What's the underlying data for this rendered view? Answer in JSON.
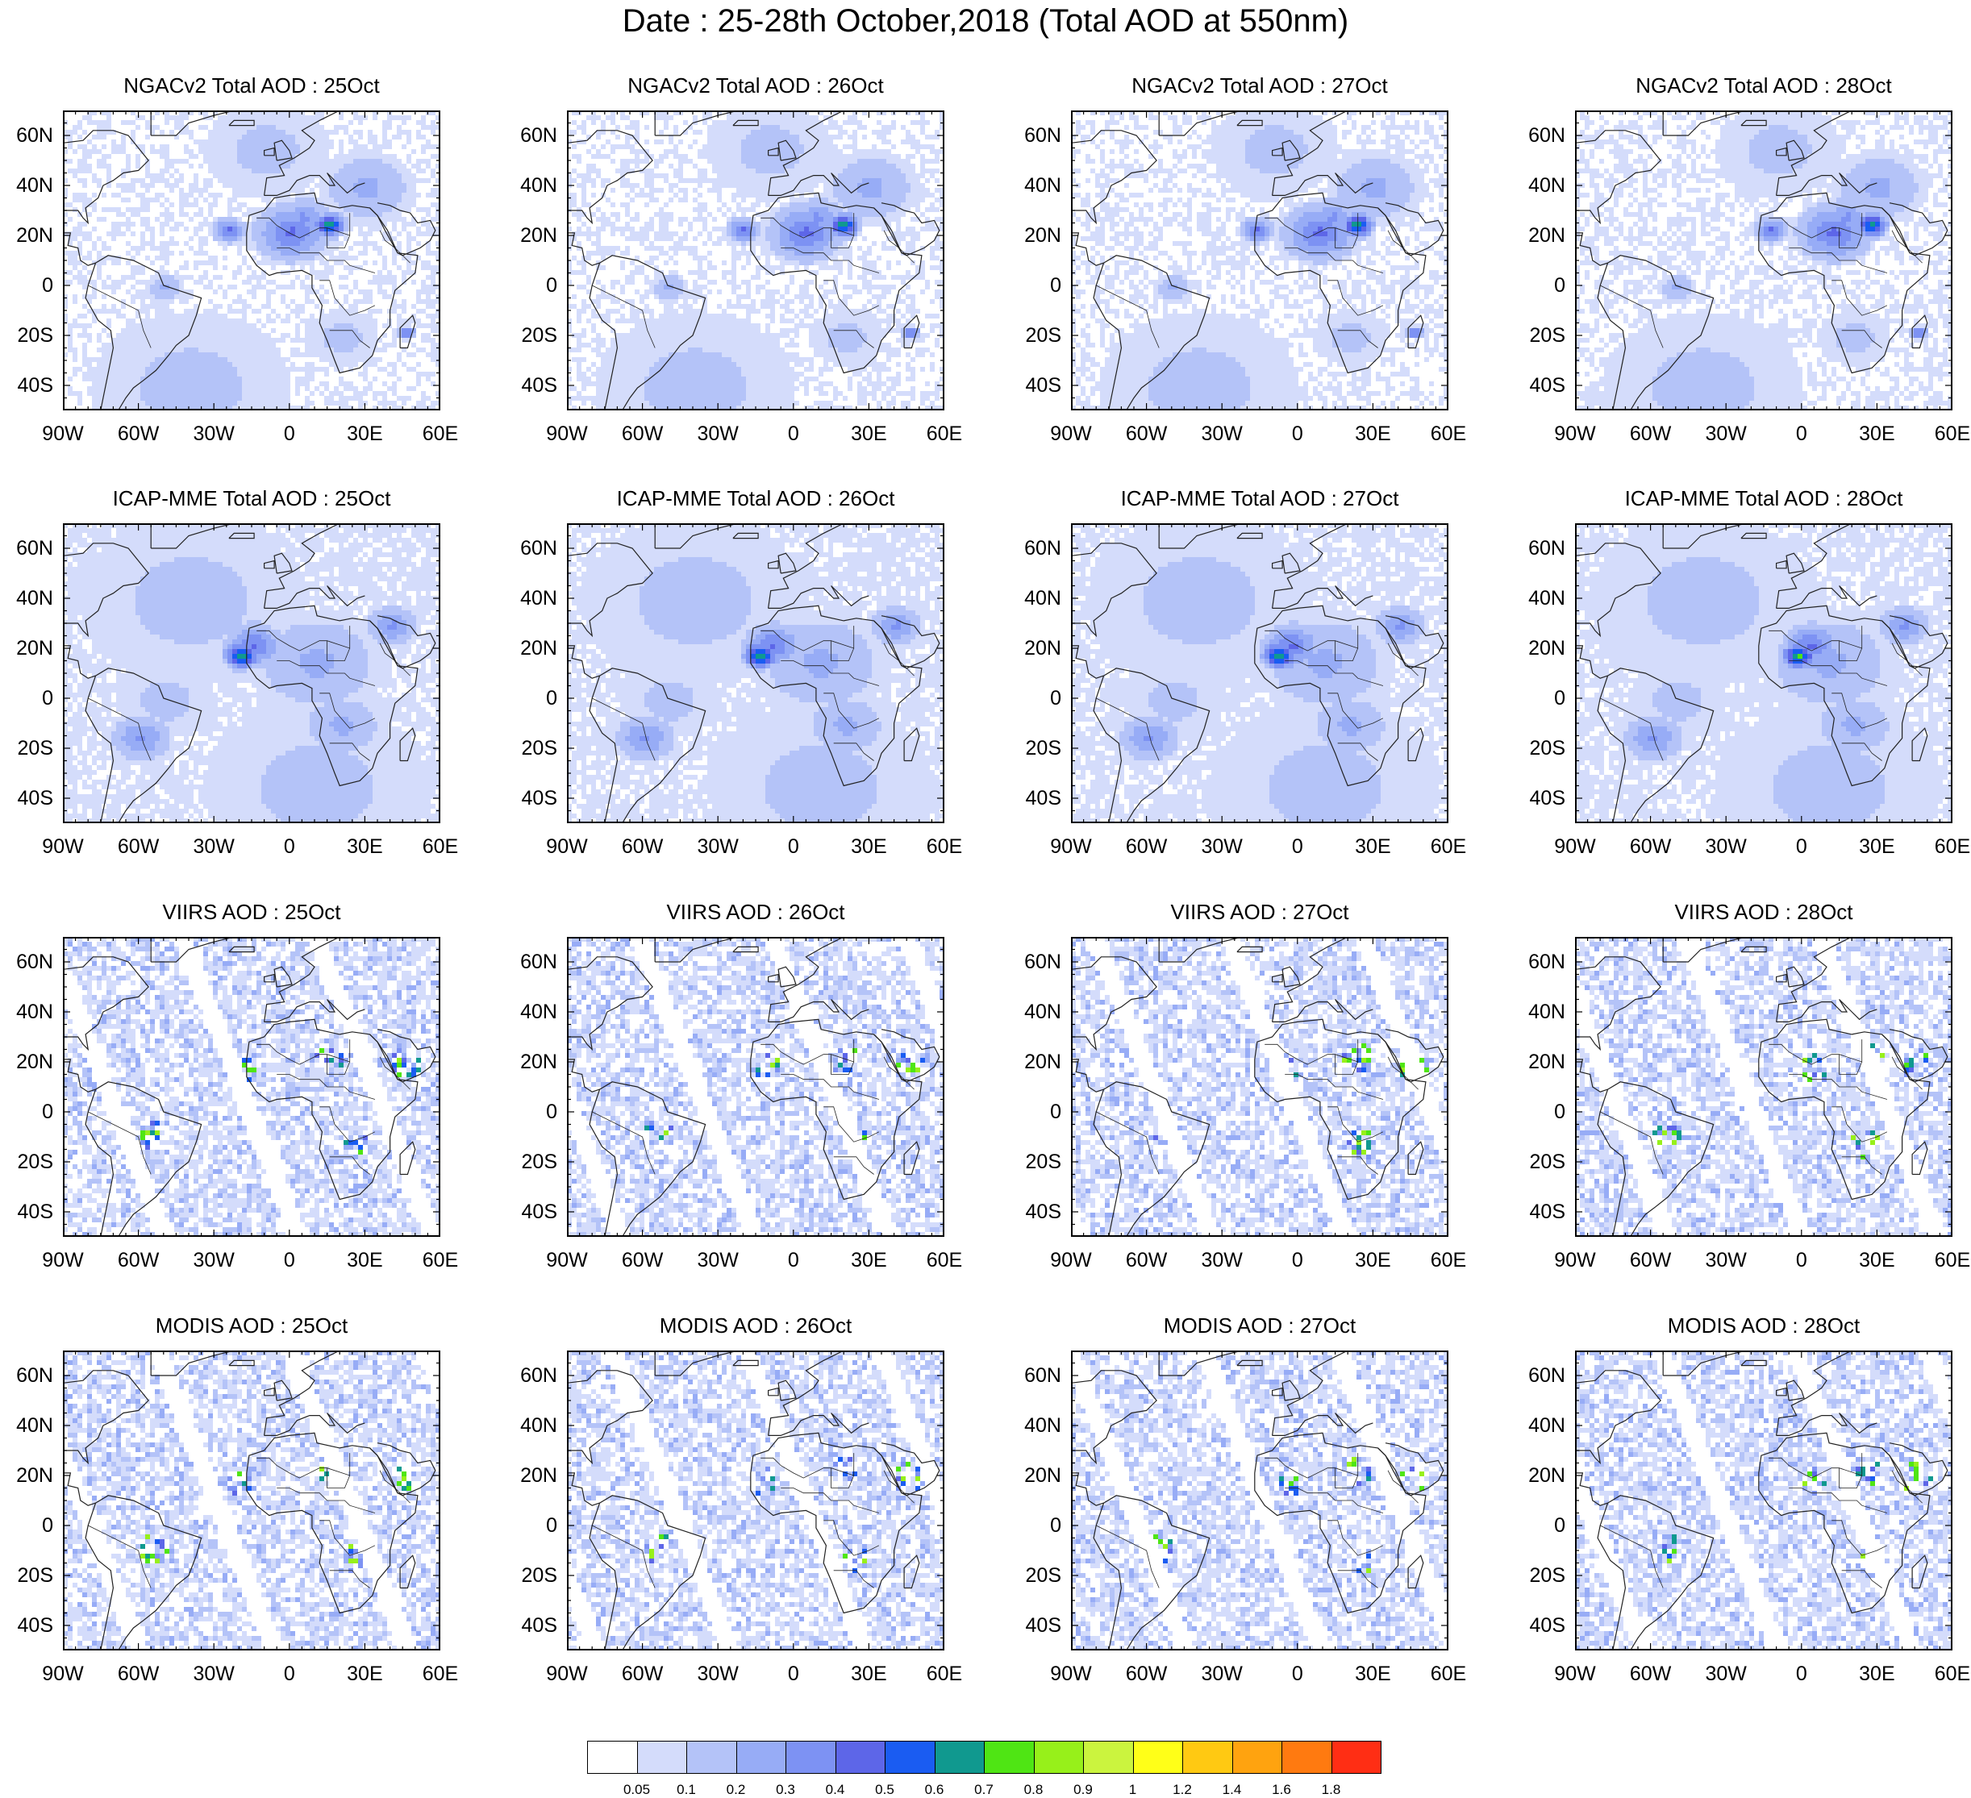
{
  "figure": {
    "title": "Date : 25-28th October,2018 (Total AOD at 550nm)",
    "lat_labels": [
      "60N",
      "40N",
      "20N",
      "0",
      "20S",
      "40S"
    ],
    "lon_labels": [
      "90W",
      "60W",
      "30W",
      "0",
      "30E",
      "60E"
    ],
    "lat_range": [
      -50,
      70
    ],
    "lon_range": [
      -90,
      60
    ],
    "rows": [
      {
        "source": "NGACv2",
        "panels": [
          {
            "title": "NGACv2 Total AOD : 25Oct"
          },
          {
            "title": "NGACv2 Total AOD : 26Oct"
          },
          {
            "title": "NGACv2 Total AOD : 27Oct"
          },
          {
            "title": "NGACv2 Total AOD : 28Oct"
          }
        ]
      },
      {
        "source": "ICAP-MME",
        "panels": [
          {
            "title": "ICAP-MME Total AOD : 25Oct"
          },
          {
            "title": "ICAP-MME Total AOD : 26Oct"
          },
          {
            "title": "ICAP-MME Total AOD : 27Oct"
          },
          {
            "title": "ICAP-MME Total AOD : 28Oct"
          }
        ]
      },
      {
        "source": "VIIRS",
        "panels": [
          {
            "title": "VIIRS AOD : 25Oct"
          },
          {
            "title": "VIIRS AOD : 26Oct"
          },
          {
            "title": "VIIRS AOD : 27Oct"
          },
          {
            "title": "VIIRS AOD : 28Oct"
          }
        ]
      },
      {
        "source": "MODIS",
        "panels": [
          {
            "title": "MODIS AOD : 25Oct"
          },
          {
            "title": "MODIS AOD : 26Oct"
          },
          {
            "title": "MODIS AOD : 27Oct"
          },
          {
            "title": "MODIS AOD : 28Oct"
          }
        ]
      }
    ]
  },
  "colorbar": {
    "labels": [
      "0.05",
      "0.1",
      "0.2",
      "0.3",
      "0.4",
      "0.5",
      "0.6",
      "0.7",
      "0.8",
      "0.9",
      "1",
      "1.2",
      "1.4",
      "1.6",
      "1.8"
    ],
    "colors": [
      "#ffffff",
      "#d4dcfb",
      "#b4c3f8",
      "#97acf6",
      "#7d92f3",
      "#5d66e8",
      "#1a5cf2",
      "#10998f",
      "#4fe514",
      "#97f01a",
      "#cbf43e",
      "#ffff18",
      "#ffc912",
      "#ffa30f",
      "#ff7a10",
      "#ff2e14"
    ]
  }
}
